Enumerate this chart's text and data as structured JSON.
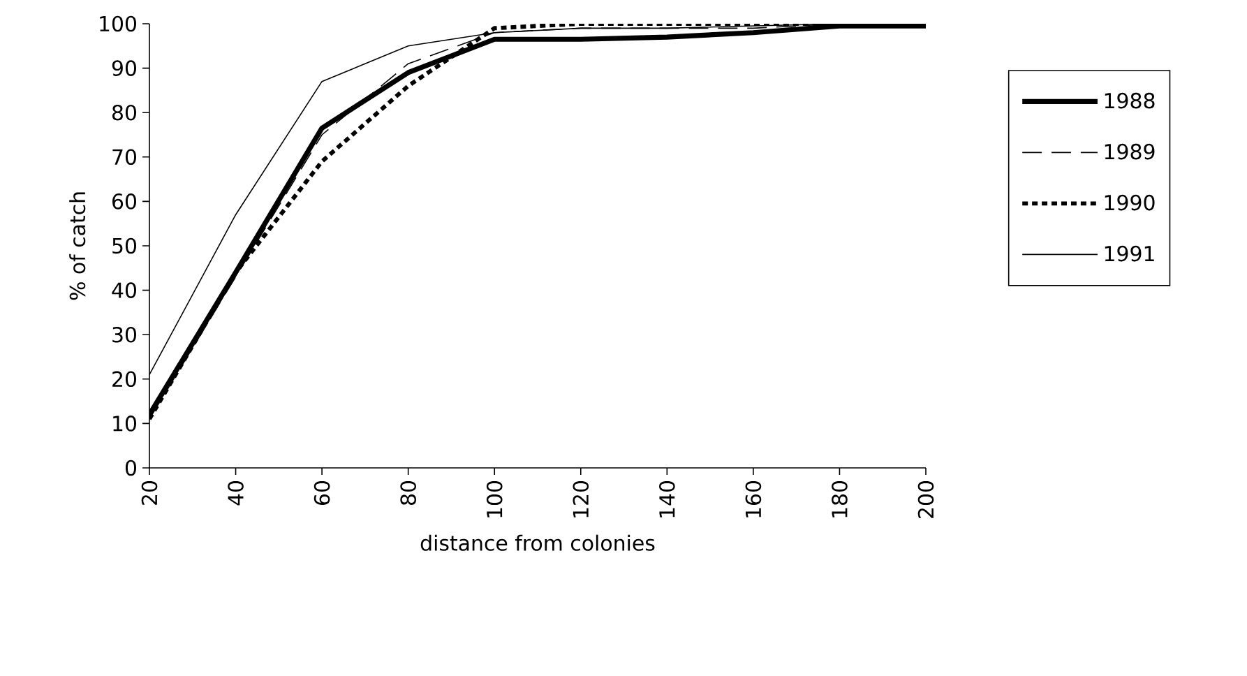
{
  "chart_data": {
    "type": "line",
    "xlabel": "distance from colonies",
    "ylabel": "% of catch",
    "x": [
      20,
      40,
      60,
      80,
      100,
      120,
      140,
      160,
      180,
      200
    ],
    "series": [
      {
        "name": "1988",
        "color": "#000000",
        "line_style": "solid",
        "values": [
          12,
          44,
          76.5,
          89,
          96.5,
          96.5,
          97,
          98,
          99.5,
          99.5
        ]
      },
      {
        "name": "1989",
        "color": "#000000",
        "line_style": "dashed",
        "values": [
          11,
          43,
          75,
          91,
          98,
          99,
          99,
          99,
          100,
          100
        ]
      },
      {
        "name": "1990",
        "color": "#000000",
        "line_style": "dotted",
        "values": [
          11,
          44,
          69,
          86,
          99,
          100,
          100,
          100,
          100,
          100
        ]
      },
      {
        "name": "1991",
        "color": "#000000",
        "line_style": "solid",
        "values": [
          21,
          57,
          87,
          95,
          98,
          99,
          99,
          99.5,
          100,
          100
        ]
      }
    ],
    "xlim": [
      20,
      200
    ],
    "ylim": [
      0,
      100
    ],
    "xticks": [
      20,
      40,
      60,
      80,
      100,
      120,
      140,
      160,
      180,
      200
    ],
    "yticks": [
      0,
      10,
      20,
      30,
      40,
      50,
      60,
      70,
      80,
      90,
      100
    ],
    "grid": false,
    "legend": "right",
    "marker": "none"
  }
}
